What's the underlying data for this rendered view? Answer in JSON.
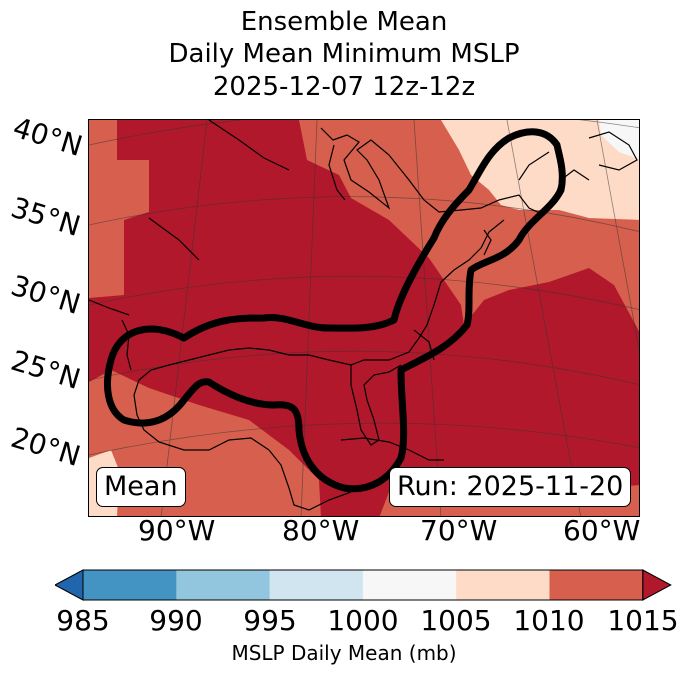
{
  "title": {
    "line1": "Ensemble Mean",
    "line2": "Daily Mean Minimum MSLP",
    "line3": "2025-12-07 12z-12z"
  },
  "map": {
    "lat_labels": [
      "40°N",
      "35°N",
      "30°N",
      "25°N",
      "20°N"
    ],
    "lon_labels": [
      "90°W",
      "80°W",
      "70°W",
      "60°W"
    ],
    "mean_label": "Mean",
    "run_label": "Run: 2025-11-20"
  },
  "colorbar": {
    "label": "MSLP Daily Mean (mb)",
    "ticks": [
      "985",
      "990",
      "995",
      "1000",
      "1005",
      "1010",
      "1015"
    ],
    "bins": [
      {
        "range": "<985",
        "color": "#2166ac"
      },
      {
        "range": "985-990",
        "color": "#4393c3"
      },
      {
        "range": "990-995",
        "color": "#92c5de"
      },
      {
        "range": "995-1000",
        "color": "#d1e5f0"
      },
      {
        "range": "1000-1005",
        "color": "#f7f7f7"
      },
      {
        "range": "1005-1010",
        "color": "#fddbc7"
      },
      {
        "range": "1010-1015",
        "color": "#d6604d"
      },
      {
        "range": ">1015",
        "color": "#b2182b"
      }
    ]
  }
}
